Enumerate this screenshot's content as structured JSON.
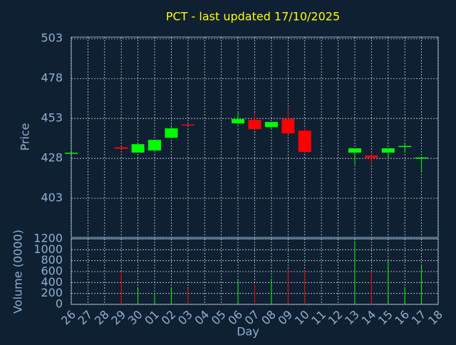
{
  "chart_data": {
    "type": "candlestick",
    "title": "PCT - last updated 17/10/2025",
    "y_label": "Price",
    "y2_label": "Volume (0000)",
    "x_label": "Day",
    "categories": [
      "26",
      "27",
      "28",
      "29",
      "30",
      "01",
      "02",
      "03",
      "04",
      "05",
      "06",
      "07",
      "08",
      "09",
      "10",
      "11",
      "12",
      "13",
      "14",
      "15",
      "16",
      "17",
      "18"
    ],
    "open": [
      431,
      null,
      null,
      435,
      431.6,
      432.9,
      440.9,
      449.2,
      null,
      null,
      449.9,
      452.1,
      447.6,
      452.6,
      445.4,
      null,
      null,
      431.6,
      429.8,
      431.6,
      435.4,
      428,
      null
    ],
    "high": [
      431.5,
      null,
      null,
      435,
      437.5,
      439.6,
      449,
      449.2,
      null,
      null,
      457,
      456.6,
      450.8,
      458.8,
      447,
      null,
      null,
      434.3,
      431.5,
      434.3,
      437.6,
      428.5,
      null
    ],
    "low": [
      431,
      null,
      null,
      434,
      431.6,
      432.9,
      440.9,
      448.8,
      null,
      null,
      449,
      446.3,
      446,
      443.6,
      432,
      null,
      null,
      424,
      424,
      428,
      431.6,
      419.5,
      null
    ],
    "close": [
      431.5,
      null,
      null,
      434,
      436.9,
      439.6,
      446.8,
      448.8,
      null,
      null,
      452.6,
      446.3,
      450.8,
      443.6,
      432,
      null,
      null,
      434.3,
      428.4,
      434.3,
      435.8,
      428.6,
      null
    ],
    "volume": [
      null,
      null,
      null,
      580,
      290,
      210,
      316,
      290,
      null,
      null,
      448,
      370,
      475,
      646,
      620,
      null,
      null,
      1160,
      606,
      804,
      316,
      712,
      null
    ],
    "up_color": "#00ff00",
    "down_color": "#ff0000",
    "ylim": [
      378.5,
      504
    ],
    "yticks": [
      403,
      428,
      453,
      478,
      503
    ],
    "y2lim": [
      0,
      1200
    ],
    "y2ticks": [
      0,
      200,
      400,
      600,
      800,
      1000,
      1200
    ],
    "grid": true
  }
}
